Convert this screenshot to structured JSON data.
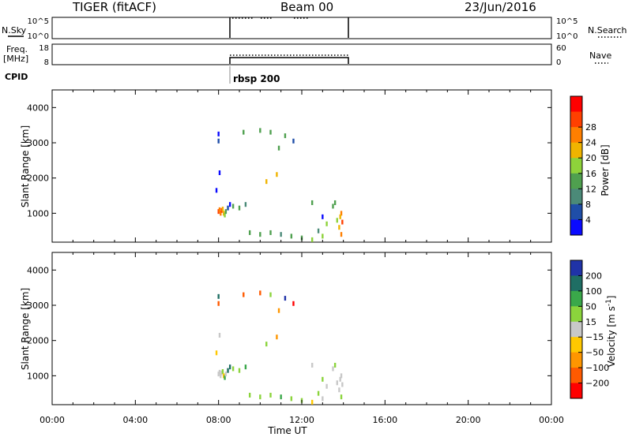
{
  "header": {
    "station": "TIGER (fitACF)",
    "beam": "Beam 00",
    "date": "23/Jun/2016"
  },
  "params": {
    "nsky_label": "N.Sky",
    "nsearch_label": "N.Search",
    "freq_label_1": "Freq.",
    "freq_label_2": "[MHz]",
    "nave_label": "Nave",
    "cpid_label": "CPID",
    "cpid_value": "rbsp 200",
    "nsky_ticks": [
      "10^5",
      "10^0"
    ],
    "nsearch_ticks": [
      "10^5",
      "10^0"
    ],
    "freq_ticks": [
      "18",
      "8"
    ],
    "nave_ticks": [
      "60",
      "0"
    ]
  },
  "colors": {
    "power_scale": [
      "#0a0aff",
      "#1f4ea8",
      "#4b8a78",
      "#4fa04f",
      "#8ed23a",
      "#f0b400",
      "#ff7f00",
      "#ff4000",
      "#ff0000"
    ],
    "velocity_scale": [
      "#2033a8",
      "#1f6e64",
      "#3aa84a",
      "#8bd43c",
      "#c8c8c8",
      "#ffc800",
      "#ff9600",
      "#ff5a00",
      "#ff0000"
    ]
  },
  "chart_data": [
    {
      "type": "line",
      "title": "N.Sky / N.Search",
      "x": [
        "08:00",
        "14:00"
      ],
      "series": [
        {
          "name": "N.Sky",
          "values": [
            1,
            1
          ]
        },
        {
          "name": "N.Search",
          "values": [
            1,
            1
          ]
        }
      ],
      "xlim": [
        "00:00",
        "24:00"
      ],
      "ylim_label": [
        "10^0",
        "10^5"
      ]
    },
    {
      "type": "line",
      "title": "Freq. / Nave",
      "x": [
        "08:00",
        "14:00"
      ],
      "series": [
        {
          "name": "Freq.",
          "unit": "MHz",
          "values": [
            11,
            11
          ]
        },
        {
          "name": "Nave",
          "values": [
            30,
            30
          ]
        }
      ],
      "ylim_left": [
        8,
        18
      ],
      "ylim_right": [
        0,
        60
      ]
    },
    {
      "type": "heatmap",
      "parameter": "Power",
      "unit": "dB",
      "xlabel": "",
      "ylabel": "Slant Range [km]",
      "xlim_hours": [
        0,
        24
      ],
      "ylim": [
        180,
        4500
      ],
      "yticks": [
        1000,
        2000,
        3000,
        4000
      ],
      "colorbar_ticks": [
        4,
        8,
        12,
        16,
        20,
        24,
        28
      ],
      "colorbar_label": "Power [dB]",
      "points_hour_range_value": [
        [
          8.0,
          1050,
          30
        ],
        [
          8.05,
          1100,
          28
        ],
        [
          8.1,
          1000,
          26
        ],
        [
          8.15,
          1080,
          29
        ],
        [
          8.2,
          1120,
          24
        ],
        [
          8.25,
          1000,
          22
        ],
        [
          8.3,
          950,
          18
        ],
        [
          8.35,
          1050,
          14
        ],
        [
          8.45,
          1150,
          6
        ],
        [
          8.55,
          1250,
          4
        ],
        [
          8.7,
          1200,
          14
        ],
        [
          9.0,
          1150,
          16
        ],
        [
          9.3,
          1250,
          12
        ],
        [
          8.0,
          3250,
          4
        ],
        [
          8.0,
          3050,
          8
        ],
        [
          8.05,
          2150,
          4
        ],
        [
          7.9,
          1650,
          4
        ],
        [
          9.5,
          450,
          16
        ],
        [
          10.0,
          400,
          14
        ],
        [
          10.5,
          450,
          15
        ],
        [
          11.0,
          400,
          12
        ],
        [
          11.5,
          350,
          16
        ],
        [
          12.0,
          300,
          14
        ],
        [
          12.5,
          250,
          18
        ],
        [
          13.0,
          350,
          20
        ],
        [
          10.0,
          3350,
          14
        ],
        [
          10.5,
          3300,
          16
        ],
        [
          11.2,
          3200,
          14
        ],
        [
          11.6,
          3050,
          8
        ],
        [
          9.2,
          3300,
          16
        ],
        [
          10.9,
          2850,
          16
        ],
        [
          10.8,
          2100,
          22
        ],
        [
          10.3,
          1900,
          24
        ],
        [
          12.5,
          1300,
          16
        ],
        [
          13.0,
          900,
          4
        ],
        [
          13.5,
          1200,
          16
        ],
        [
          13.7,
          800,
          20
        ],
        [
          13.8,
          600,
          24
        ],
        [
          13.9,
          400,
          28
        ],
        [
          13.9,
          1000,
          26
        ],
        [
          13.6,
          1300,
          14
        ],
        [
          13.2,
          700,
          18
        ],
        [
          12.8,
          500,
          12
        ],
        [
          13.95,
          750,
          30
        ],
        [
          13.85,
          900,
          22
        ]
      ]
    },
    {
      "type": "heatmap",
      "parameter": "Velocity",
      "unit": "m s^-1",
      "xlabel": "Time UT",
      "ylabel": "Slant Range [km]",
      "xlim_hours": [
        0,
        24
      ],
      "ylim": [
        180,
        4500
      ],
      "yticks": [
        1000,
        2000,
        3000,
        4000
      ],
      "xticks": [
        "00:00",
        "04:00",
        "08:00",
        "12:00",
        "16:00",
        "20:00",
        "00:00"
      ],
      "colorbar_ticks": [
        -200,
        -100,
        -50,
        -15,
        15,
        50,
        100,
        200
      ],
      "colorbar_label": "Velocity [m s^-1]",
      "points_hour_range_value": [
        [
          8.0,
          1050,
          0
        ],
        [
          8.05,
          1100,
          5
        ],
        [
          8.1,
          1000,
          -5
        ],
        [
          8.15,
          1080,
          0
        ],
        [
          8.2,
          1120,
          20
        ],
        [
          8.25,
          1000,
          -20
        ],
        [
          8.3,
          950,
          60
        ],
        [
          8.35,
          1050,
          5
        ],
        [
          8.45,
          1150,
          150
        ],
        [
          8.55,
          1250,
          120
        ],
        [
          8.7,
          1200,
          20
        ],
        [
          9.0,
          1150,
          40
        ],
        [
          9.3,
          1250,
          60
        ],
        [
          8.0,
          3250,
          150
        ],
        [
          8.0,
          3050,
          -120
        ],
        [
          8.05,
          2150,
          0
        ],
        [
          7.9,
          1650,
          -30
        ],
        [
          9.5,
          450,
          30
        ],
        [
          10.0,
          400,
          40
        ],
        [
          10.5,
          450,
          20
        ],
        [
          11.0,
          400,
          60
        ],
        [
          11.5,
          350,
          20
        ],
        [
          12.0,
          300,
          30
        ],
        [
          12.5,
          250,
          -40
        ],
        [
          13.0,
          350,
          0
        ],
        [
          10.0,
          3350,
          -150
        ],
        [
          10.5,
          3300,
          30
        ],
        [
          11.2,
          3200,
          200
        ],
        [
          11.6,
          3050,
          -250
        ],
        [
          9.2,
          3300,
          -200
        ],
        [
          10.9,
          2850,
          -60
        ],
        [
          10.8,
          2100,
          -80
        ],
        [
          10.3,
          1900,
          20
        ],
        [
          12.5,
          1300,
          0
        ],
        [
          13.0,
          900,
          30
        ],
        [
          13.5,
          1200,
          0
        ],
        [
          13.7,
          800,
          5
        ],
        [
          13.8,
          600,
          0
        ],
        [
          13.9,
          400,
          30
        ],
        [
          13.9,
          1000,
          -5
        ],
        [
          13.6,
          1300,
          20
        ],
        [
          13.2,
          700,
          0
        ],
        [
          12.8,
          500,
          40
        ],
        [
          13.95,
          750,
          0
        ],
        [
          13.85,
          900,
          10
        ]
      ]
    }
  ]
}
